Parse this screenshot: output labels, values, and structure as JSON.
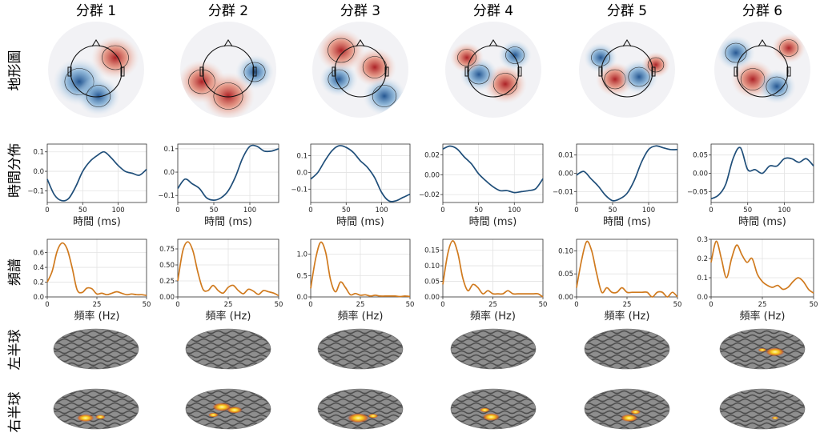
{
  "figure": {
    "column_titles": [
      "分群 1",
      "分群 2",
      "分群 3",
      "分群 4",
      "分群 5",
      "分群 6"
    ],
    "row_labels": {
      "topomap": "地形圖",
      "time": "時間分佈",
      "spectrum": "頻譜",
      "left_hemi": "左半球",
      "right_hemi": "右半球"
    },
    "time_xlabel": "時間 (ms)",
    "freq_xlabel": "頻率 (Hz)"
  },
  "colors": {
    "time_line": "#1f4e79",
    "spectrum_line": "#d07a1e",
    "grid": "#e3e3e3",
    "brain_base": "#8e8e8e",
    "brain_sulci": "#4e4e4e",
    "activation": "#ffd21c",
    "positive": "#c0392b",
    "negative": "#2166ac"
  },
  "chart_data": [
    {
      "type": "line",
      "panel": "時間分佈",
      "cluster": "分群 1",
      "x": [
        0,
        10,
        20,
        30,
        40,
        50,
        60,
        70,
        80,
        90,
        100,
        110,
        120,
        130,
        140
      ],
      "y": [
        -0.04,
        -0.12,
        -0.15,
        -0.14,
        -0.08,
        0.0,
        0.05,
        0.08,
        0.1,
        0.07,
        0.03,
        0.0,
        -0.01,
        -0.02,
        0.01
      ],
      "xlim": [
        0,
        140
      ],
      "ylim": [
        -0.16,
        0.14
      ],
      "xticks": [
        0,
        50,
        100
      ],
      "yticks": [
        -0.1,
        0.0,
        0.1
      ],
      "ytick_labels": [
        "−0.1",
        "0.0",
        "0.1"
      ]
    },
    {
      "type": "line",
      "panel": "時間分佈",
      "cluster": "分群 2",
      "x": [
        0,
        10,
        20,
        30,
        40,
        50,
        60,
        70,
        80,
        90,
        100,
        110,
        120,
        130,
        140
      ],
      "y": [
        -0.07,
        -0.03,
        -0.05,
        -0.07,
        -0.11,
        -0.12,
        -0.11,
        -0.08,
        -0.02,
        0.06,
        0.11,
        0.11,
        0.09,
        0.09,
        0.1
      ],
      "xlim": [
        0,
        140
      ],
      "ylim": [
        -0.13,
        0.12
      ],
      "xticks": [
        0,
        50,
        100
      ],
      "yticks": [
        -0.1,
        0.0,
        0.1
      ],
      "ytick_labels": [
        "−0.1",
        "0.0",
        "0.1"
      ]
    },
    {
      "type": "line",
      "panel": "時間分佈",
      "cluster": "分群 3",
      "x": [
        0,
        10,
        20,
        30,
        40,
        50,
        60,
        70,
        80,
        90,
        100,
        110,
        120,
        130,
        140
      ],
      "y": [
        -0.04,
        0.0,
        0.07,
        0.13,
        0.16,
        0.15,
        0.12,
        0.07,
        0.03,
        -0.03,
        -0.12,
        -0.17,
        -0.17,
        -0.15,
        -0.13
      ],
      "xlim": [
        0,
        140
      ],
      "ylim": [
        -0.18,
        0.17
      ],
      "xticks": [
        0,
        50,
        100
      ],
      "yticks": [
        -0.1,
        0.0,
        0.1
      ],
      "ytick_labels": [
        "−0.1",
        "0.0",
        "0.1"
      ]
    },
    {
      "type": "line",
      "panel": "時間分佈",
      "cluster": "分群 4",
      "x": [
        0,
        10,
        20,
        30,
        40,
        50,
        60,
        70,
        80,
        90,
        100,
        110,
        120,
        130,
        140
      ],
      "y": [
        0.026,
        0.029,
        0.026,
        0.018,
        0.011,
        0.001,
        -0.006,
        -0.012,
        -0.016,
        -0.016,
        -0.018,
        -0.017,
        -0.016,
        -0.014,
        -0.004
      ],
      "xlim": [
        0,
        140
      ],
      "ylim": [
        -0.028,
        0.031
      ],
      "xticks": [
        0,
        50,
        100
      ],
      "yticks": [
        -0.02,
        0.0,
        0.02
      ],
      "ytick_labels": [
        "−0.02",
        "0.00",
        "0.02"
      ]
    },
    {
      "type": "line",
      "panel": "時間分佈",
      "cluster": "分群 5",
      "x": [
        0,
        10,
        20,
        30,
        40,
        50,
        60,
        70,
        80,
        90,
        100,
        110,
        120,
        130,
        140
      ],
      "y": [
        -0.001,
        0.001,
        -0.003,
        -0.007,
        -0.012,
        -0.015,
        -0.014,
        -0.011,
        -0.004,
        0.006,
        0.013,
        0.015,
        0.014,
        0.013,
        0.013
      ],
      "xlim": [
        0,
        140
      ],
      "ylim": [
        -0.016,
        0.016
      ],
      "xticks": [
        0,
        50,
        100
      ],
      "yticks": [
        -0.01,
        0.0,
        0.01
      ],
      "ytick_labels": [
        "−0.01",
        "0.00",
        "0.01"
      ]
    },
    {
      "type": "line",
      "panel": "時間分佈",
      "cluster": "分群 6",
      "x": [
        0,
        10,
        20,
        30,
        40,
        50,
        60,
        70,
        80,
        90,
        100,
        110,
        120,
        130,
        140
      ],
      "y": [
        -0.07,
        -0.06,
        -0.03,
        0.04,
        0.07,
        0.01,
        0.01,
        0.0,
        0.02,
        0.02,
        0.04,
        0.04,
        0.03,
        0.04,
        0.02
      ],
      "xlim": [
        0,
        140
      ],
      "ylim": [
        -0.08,
        0.08
      ],
      "xticks": [
        0,
        50,
        100
      ],
      "yticks": [
        -0.05,
        0.0,
        0.05
      ],
      "ytick_labels": [
        "−0.05",
        "0.00",
        "0.05"
      ]
    },
    {
      "type": "line",
      "panel": "頻譜",
      "cluster": "分群 1",
      "x": [
        0,
        2.5,
        5,
        7.5,
        10,
        12.5,
        15,
        17.5,
        20,
        22.5,
        25,
        27.5,
        30,
        32.5,
        35,
        37.5,
        40,
        42.5,
        45,
        47.5,
        50
      ],
      "y": [
        0.2,
        0.35,
        0.62,
        0.73,
        0.65,
        0.4,
        0.1,
        0.06,
        0.12,
        0.11,
        0.04,
        0.05,
        0.03,
        0.05,
        0.07,
        0.05,
        0.03,
        0.04,
        0.03,
        0.03,
        0.02
      ],
      "xlim": [
        0,
        50
      ],
      "ylim": [
        0,
        0.78
      ],
      "xticks": [
        0,
        25,
        50
      ],
      "yticks": [
        0.0,
        0.2,
        0.4,
        0.6
      ],
      "ytick_labels": [
        "0.0",
        "0.2",
        "0.4",
        "0.6"
      ]
    },
    {
      "type": "line",
      "panel": "頻譜",
      "cluster": "分群 2",
      "x": [
        0,
        2.5,
        5,
        7.5,
        10,
        12.5,
        15,
        17.5,
        20,
        22.5,
        25,
        27.5,
        30,
        32.5,
        35,
        37.5,
        40,
        42.5,
        45,
        47.5,
        50
      ],
      "y": [
        0.25,
        0.72,
        0.86,
        0.72,
        0.38,
        0.12,
        0.1,
        0.18,
        0.1,
        0.06,
        0.15,
        0.18,
        0.1,
        0.05,
        0.12,
        0.09,
        0.04,
        0.1,
        0.08,
        0.06,
        0.02
      ],
      "xlim": [
        0,
        50
      ],
      "ylim": [
        0,
        0.9
      ],
      "xticks": [
        0,
        25,
        50
      ],
      "yticks": [
        0.0,
        0.25,
        0.5,
        0.75
      ],
      "ytick_labels": [
        "0.00",
        "0.25",
        "0.50",
        "0.75"
      ]
    },
    {
      "type": "line",
      "panel": "頻譜",
      "cluster": "分群 3",
      "x": [
        0,
        2.5,
        5,
        7.5,
        10,
        12.5,
        15,
        17.5,
        20,
        22.5,
        25,
        27.5,
        30,
        32.5,
        35,
        37.5,
        40,
        42.5,
        45,
        47.5,
        50
      ],
      "y": [
        0.2,
        0.9,
        1.28,
        1.05,
        0.4,
        0.12,
        0.35,
        0.22,
        0.05,
        0.08,
        0.04,
        0.05,
        0.02,
        0.04,
        0.02,
        0.02,
        0.02,
        0.02,
        0.01,
        0.02,
        0.01
      ],
      "xlim": [
        0,
        50
      ],
      "ylim": [
        0,
        1.35
      ],
      "xticks": [
        0,
        25,
        50
      ],
      "yticks": [
        0.0,
        0.5,
        1.0
      ],
      "ytick_labels": [
        "0.0",
        "0.5",
        "1.0"
      ]
    },
    {
      "type": "line",
      "panel": "頻譜",
      "cluster": "分群 4",
      "x": [
        0,
        2.5,
        5,
        7.5,
        10,
        12.5,
        15,
        17.5,
        20,
        22.5,
        25,
        27.5,
        30,
        32.5,
        35,
        37.5,
        40,
        42.5,
        45,
        47.5,
        50
      ],
      "y": [
        0.04,
        0.14,
        0.18,
        0.14,
        0.06,
        0.02,
        0.04,
        0.03,
        0.01,
        0.02,
        0.01,
        0.01,
        0.01,
        0.02,
        0.01,
        0.01,
        0.01,
        0.01,
        0.01,
        0.01,
        0.0
      ],
      "xlim": [
        0,
        50
      ],
      "ylim": [
        0,
        0.185
      ],
      "xticks": [
        0,
        25,
        50
      ],
      "yticks": [
        0.0,
        0.05,
        0.1,
        0.15
      ],
      "ytick_labels": [
        "0.00",
        "0.05",
        "0.10",
        "0.15"
      ]
    },
    {
      "type": "line",
      "panel": "頻譜",
      "cluster": "分群 5",
      "x": [
        0,
        2.5,
        5,
        7.5,
        10,
        12.5,
        15,
        17.5,
        20,
        22.5,
        25,
        27.5,
        30,
        32.5,
        35,
        37.5,
        40,
        42.5,
        45,
        47.5,
        50
      ],
      "y": [
        0.02,
        0.08,
        0.12,
        0.1,
        0.05,
        0.01,
        0.02,
        0.01,
        0.01,
        0.02,
        0.01,
        0.01,
        0.01,
        0.01,
        0.01,
        0.0,
        0.01,
        0.01,
        0.0,
        0.01,
        0.0
      ],
      "xlim": [
        0,
        50
      ],
      "ylim": [
        0,
        0.125
      ],
      "xticks": [
        0,
        25,
        50
      ],
      "yticks": [
        0.0,
        0.05,
        0.1
      ],
      "ytick_labels": [
        "0.00",
        "0.05",
        "0.10"
      ]
    },
    {
      "type": "line",
      "panel": "頻譜",
      "cluster": "分群 6",
      "x": [
        0,
        2.5,
        5,
        7.5,
        10,
        12.5,
        15,
        17.5,
        20,
        22.5,
        25,
        27.5,
        30,
        32.5,
        35,
        37.5,
        40,
        42.5,
        45,
        47.5,
        50
      ],
      "y": [
        0.18,
        0.29,
        0.2,
        0.1,
        0.2,
        0.27,
        0.22,
        0.18,
        0.2,
        0.12,
        0.08,
        0.06,
        0.05,
        0.06,
        0.04,
        0.05,
        0.08,
        0.1,
        0.08,
        0.04,
        0.02
      ],
      "xlim": [
        0,
        50
      ],
      "ylim": [
        0,
        0.3
      ],
      "xticks": [
        0,
        25,
        50
      ],
      "yticks": [
        0.0,
        0.1,
        0.2,
        0.3
      ],
      "ytick_labels": [
        "0.0",
        "0.1",
        "0.2",
        "0.3"
      ]
    }
  ]
}
